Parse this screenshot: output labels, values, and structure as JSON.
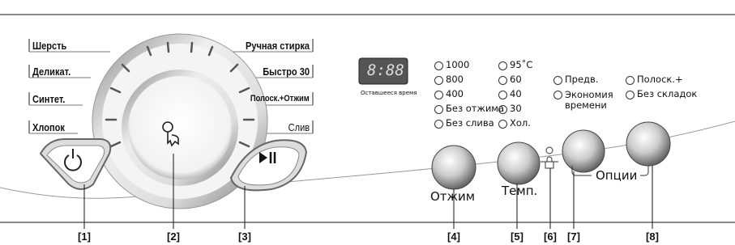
{
  "programs_left": [
    "Шерсть",
    "Деликат.",
    "Синтет.",
    "Хлопок"
  ],
  "programs_right": [
    "Ручная стирка",
    "Быстро 30",
    "Полоск.+Отжим",
    "Слив"
  ],
  "display": {
    "digits": "8:88",
    "caption": "Оставшееся время"
  },
  "spin_options": [
    "1000",
    "800",
    "400",
    "Без отжима",
    "Без слива"
  ],
  "temp_options": [
    "95˚C",
    "60",
    "40",
    "30",
    "Хол."
  ],
  "extra_options": [
    "Предв.",
    "Полоск.+",
    "Экономия\nвремени",
    "Без складок"
  ],
  "knob_labels": [
    "Отжим",
    "Темп.",
    "Опции"
  ],
  "callouts": [
    "[1]",
    "[2]",
    "[3]",
    "[4]",
    "[5]",
    "[6]",
    "[7]",
    "[8]"
  ]
}
